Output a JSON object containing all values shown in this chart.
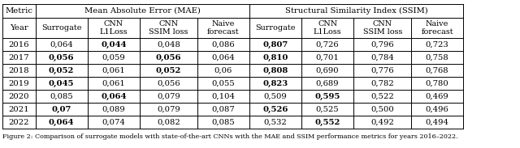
{
  "header1_left": "Metric",
  "header2_left": "Year",
  "mae_header": "Mean Absolute Error (MAE)",
  "ssim_header": "Structural Similarity Index (SSIM)",
  "header2_labels": [
    "Surrogate",
    "CNN\nL1Loss",
    "CNN\nSSIM loss",
    "Naive\nforecast",
    "Surrogate",
    "CNN\nL1Loss",
    "CNN\nSSIM loss",
    "Naive\nforecast"
  ],
  "years": [
    "2016",
    "2017",
    "2018",
    "2019",
    "2020",
    "2021",
    "2022"
  ],
  "data": [
    [
      "0,064",
      "0,044",
      "0,048",
      "0,086",
      "0,807",
      "0,726",
      "0,796",
      "0,723"
    ],
    [
      "0,056",
      "0,059",
      "0,056",
      "0,064",
      "0,810",
      "0,701",
      "0,784",
      "0,758"
    ],
    [
      "0,052",
      "0,061",
      "0,052",
      "0,06",
      "0,808",
      "0,690",
      "0,776",
      "0,768"
    ],
    [
      "0,045",
      "0,061",
      "0,056",
      "0,055",
      "0,823",
      "0,689",
      "0,782",
      "0,780"
    ],
    [
      "0,085",
      "0,064",
      "0,079",
      "0,104",
      "0,509",
      "0,595",
      "0,522",
      "0,469"
    ],
    [
      "0,07",
      "0,089",
      "0,079",
      "0,087",
      "0,526",
      "0,525",
      "0,500",
      "0,496"
    ],
    [
      "0,064",
      "0,074",
      "0,082",
      "0,085",
      "0,532",
      "0,552",
      "0,492",
      "0,494"
    ]
  ],
  "bold": [
    [
      false,
      true,
      false,
      false,
      true,
      false,
      false,
      false
    ],
    [
      true,
      false,
      true,
      false,
      true,
      false,
      false,
      false
    ],
    [
      true,
      false,
      true,
      false,
      true,
      false,
      false,
      false
    ],
    [
      true,
      false,
      false,
      false,
      true,
      false,
      false,
      false
    ],
    [
      false,
      true,
      false,
      false,
      false,
      true,
      false,
      false
    ],
    [
      true,
      false,
      false,
      false,
      true,
      false,
      false,
      false
    ],
    [
      true,
      false,
      false,
      false,
      false,
      true,
      false,
      false
    ]
  ],
  "caption": "Figure 2: Comparison of surrogate models with state-of-the-art CNNs with the MAE and SSIM performance metrics for years 2016–2022.",
  "bg_color": "#ffffff",
  "line_color": "#000000",
  "font_size": 7.2,
  "caption_font_size": 5.8
}
